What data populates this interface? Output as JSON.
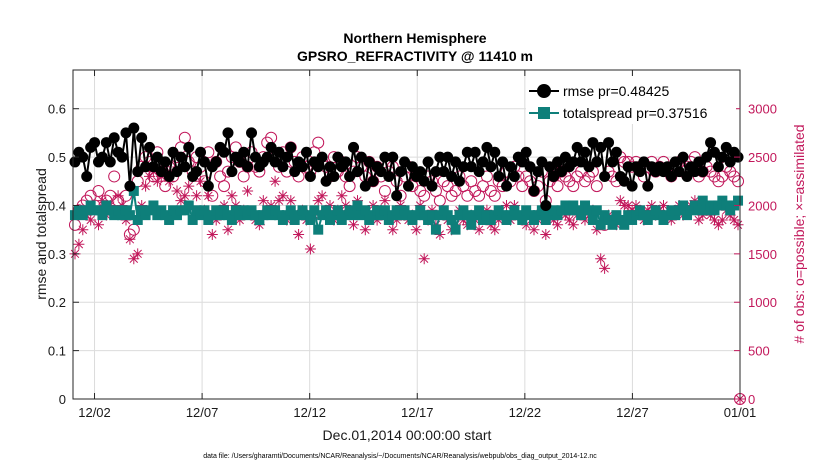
{
  "chart_data": {
    "type": "line",
    "title": "Northern Hemisphere",
    "subtitle": "GPSRO_REFRACTIVITY @ 11410 m",
    "xlabel": "Dec.01,2014 00:00:00 start",
    "ylabel": "rmse and totalspread",
    "ylabel_right": "# of obs: o=possible; ×=assimilated",
    "footnote": "data file: /Users/gharamti/Documents/NCAR/Reanalysis/~/Documents/NCAR/Reanalysis/webpub/obs_diag_output_2014-12.nc",
    "xlim": [
      0,
      31
    ],
    "ylim": [
      0,
      0.68
    ],
    "ylim_right": [
      0,
      3400
    ],
    "x_ticks": [
      {
        "value": 1,
        "label": "12/02"
      },
      {
        "value": 6,
        "label": "12/07"
      },
      {
        "value": 11,
        "label": "12/12"
      },
      {
        "value": 16,
        "label": "12/17"
      },
      {
        "value": 21,
        "label": "12/22"
      },
      {
        "value": 26,
        "label": "12/27"
      },
      {
        "value": 31,
        "label": "01/01"
      }
    ],
    "y_ticks": [
      {
        "value": 0,
        "label": "0"
      },
      {
        "value": 0.1,
        "label": "0.1"
      },
      {
        "value": 0.2,
        "label": "0.2"
      },
      {
        "value": 0.3,
        "label": "0.3"
      },
      {
        "value": 0.4,
        "label": "0.4"
      },
      {
        "value": 0.5,
        "label": "0.5"
      },
      {
        "value": 0.6,
        "label": "0.6"
      }
    ],
    "y_ticks_right": [
      {
        "value": 0,
        "label": "0"
      },
      {
        "value": 500,
        "label": "500"
      },
      {
        "value": 1000,
        "label": "1000"
      },
      {
        "value": 1500,
        "label": "1500"
      },
      {
        "value": 2000,
        "label": "2000"
      },
      {
        "value": 2500,
        "label": "2500"
      },
      {
        "value": 3000,
        "label": "3000"
      }
    ],
    "legend_position": "top-right",
    "series": [
      {
        "name": "rmse",
        "label": "rmse pr=0.48425",
        "color": "#000000",
        "marker": "filled-circle",
        "axis": "left",
        "values": [
          0.49,
          0.51,
          0.5,
          0.46,
          0.52,
          0.53,
          0.49,
          0.5,
          0.53,
          0.49,
          0.54,
          0.51,
          0.5,
          0.55,
          0.44,
          0.56,
          0.47,
          0.54,
          0.48,
          0.52,
          0.48,
          0.5,
          0.47,
          0.49,
          0.46,
          0.51,
          0.47,
          0.5,
          0.48,
          0.52,
          0.46,
          0.47,
          0.51,
          0.49,
          0.44,
          0.48,
          0.49,
          0.52,
          0.51,
          0.55,
          0.47,
          0.5,
          0.49,
          0.51,
          0.48,
          0.55,
          0.5,
          0.48,
          0.49,
          0.5,
          0.52,
          0.49,
          0.51,
          0.48,
          0.5,
          0.52,
          0.47,
          0.49,
          0.48,
          0.51,
          0.46,
          0.49,
          0.48,
          0.5,
          0.45,
          0.48,
          0.46,
          0.5,
          0.48,
          0.49,
          0.46,
          0.52,
          0.47,
          0.5,
          0.44,
          0.49,
          0.45,
          0.48,
          0.47,
          0.5,
          0.46,
          0.5,
          0.42,
          0.47,
          0.49,
          0.44,
          0.48,
          0.46,
          0.47,
          0.45,
          0.49,
          0.44,
          0.47,
          0.5,
          0.47,
          0.5,
          0.46,
          0.49,
          0.45,
          0.48,
          0.51,
          0.48,
          0.51,
          0.47,
          0.49,
          0.52,
          0.48,
          0.51,
          0.46,
          0.49,
          0.44,
          0.48,
          0.46,
          0.5,
          0.49,
          0.51,
          0.48,
          0.43,
          0.47,
          0.49,
          0.4,
          0.48,
          0.46,
          0.49,
          0.47,
          0.5,
          0.48,
          0.49,
          0.52,
          0.49,
          0.51,
          0.48,
          0.53,
          0.49,
          0.52,
          0.46,
          0.53,
          0.49,
          0.51,
          0.46,
          0.45,
          0.48,
          0.44,
          0.48,
          0.47,
          0.49,
          0.44,
          0.48,
          0.47,
          0.48,
          0.47,
          0.48,
          0.46,
          0.49,
          0.47,
          0.5,
          0.46,
          0.48,
          0.47,
          0.49,
          0.47,
          0.5,
          0.53,
          0.51,
          0.48,
          0.5,
          0.52,
          0.49,
          0.51,
          0.5
        ]
      },
      {
        "name": "totalspread",
        "label": "totalspread pr=0.37516",
        "color": "#0e7f7a",
        "marker": "filled-square",
        "axis": "left",
        "values": [
          0.38,
          0.39,
          0.38,
          0.39,
          0.4,
          0.39,
          0.39,
          0.38,
          0.4,
          0.39,
          0.38,
          0.39,
          0.38,
          0.39,
          0.38,
          0.43,
          0.37,
          0.39,
          0.38,
          0.39,
          0.4,
          0.38,
          0.39,
          0.38,
          0.37,
          0.39,
          0.38,
          0.39,
          0.39,
          0.4,
          0.37,
          0.39,
          0.38,
          0.39,
          0.37,
          0.38,
          0.39,
          0.38,
          0.39,
          0.38,
          0.37,
          0.39,
          0.38,
          0.39,
          0.38,
          0.39,
          0.38,
          0.37,
          0.38,
          0.39,
          0.38,
          0.39,
          0.38,
          0.37,
          0.38,
          0.39,
          0.37,
          0.38,
          0.39,
          0.38,
          0.37,
          0.39,
          0.35,
          0.38,
          0.39,
          0.37,
          0.38,
          0.39,
          0.37,
          0.38,
          0.39,
          0.38,
          0.4,
          0.38,
          0.39,
          0.37,
          0.38,
          0.39,
          0.38,
          0.39,
          0.37,
          0.38,
          0.39,
          0.38,
          0.39,
          0.38,
          0.37,
          0.38,
          0.39,
          0.38,
          0.37,
          0.38,
          0.35,
          0.38,
          0.39,
          0.38,
          0.37,
          0.35,
          0.38,
          0.39,
          0.38,
          0.36,
          0.38,
          0.39,
          0.37,
          0.38,
          0.37,
          0.38,
          0.39,
          0.38,
          0.37,
          0.38,
          0.39,
          0.38,
          0.37,
          0.39,
          0.38,
          0.37,
          0.38,
          0.39,
          0.37,
          0.38,
          0.39,
          0.38,
          0.39,
          0.4,
          0.39,
          0.4,
          0.39,
          0.38,
          0.4,
          0.39,
          0.37,
          0.39,
          0.36,
          0.38,
          0.37,
          0.36,
          0.38,
          0.37,
          0.36,
          0.38,
          0.37,
          0.38,
          0.39,
          0.38,
          0.37,
          0.38,
          0.39,
          0.38,
          0.37,
          0.38,
          0.39,
          0.38,
          0.39,
          0.4,
          0.38,
          0.39,
          0.4,
          0.39,
          0.41,
          0.39,
          0.4,
          0.39,
          0.4,
          0.41,
          0.4,
          0.39,
          0.4,
          0.41
        ]
      },
      {
        "name": "possible",
        "label": "possible",
        "color": "#c2185b",
        "marker": "open-circle",
        "axis": "right",
        "values": [
          1800,
          1950,
          2000,
          2050,
          2100,
          2000,
          2150,
          1950,
          2050,
          2100,
          2300,
          2050,
          1950,
          2100,
          1700,
          1750,
          2250,
          2400,
          2500,
          2450,
          2300,
          2550,
          2350,
          2200,
          2400,
          2300,
          2500,
          2600,
          2700,
          2450,
          2350,
          2500,
          2400,
          2250,
          2550,
          2100,
          2450,
          2300,
          2200,
          2350,
          2500,
          2600,
          2450,
          2300,
          2400,
          2550,
          2400,
          2350,
          2500,
          2650,
          2700,
          2500,
          2400,
          2550,
          2350,
          2600,
          2450,
          2300,
          2500,
          2400,
          2350,
          2550,
          2650,
          2450,
          2400,
          2300,
          2500,
          2350,
          2450,
          2300,
          2200,
          2350,
          2500,
          2400,
          2300,
          2450,
          2250,
          2400,
          2300,
          2150,
          2350,
          2400,
          2250,
          2100,
          2300,
          2400,
          2200,
          2300,
          2150,
          2100,
          2300,
          2250,
          2150,
          2050,
          2250,
          2200,
          2100,
          2150,
          2300,
          2200,
          2100,
          2250,
          2150,
          2100,
          2200,
          2300,
          2150,
          2100,
          2250,
          2200,
          2350,
          2250,
          2400,
          2300,
          2200,
          2300,
          2250,
          2150,
          2200,
          2350,
          2050,
          2250,
          2300,
          2200,
          2350,
          2300,
          2250,
          2200,
          2300,
          2350,
          2250,
          2300,
          2350,
          2200,
          1850,
          1800,
          2350,
          2300,
          2250,
          2500,
          2450,
          2450,
          2400,
          2450,
          2400,
          2300,
          2400,
          2450,
          2350,
          2400,
          2450,
          2350,
          2300,
          2400,
          2450,
          2350,
          2400,
          2450,
          2500,
          2300,
          2350,
          2400,
          2350,
          2300,
          2250,
          2300,
          2400,
          2350,
          2300,
          2250
        ]
      },
      {
        "name": "assimilated",
        "label": "assimilated",
        "color": "#c2185b",
        "marker": "asterisk",
        "axis": "right",
        "values": [
          1500,
          1600,
          1750,
          1900,
          1850,
          1950,
          1800,
          2050,
          1900,
          2000,
          1950,
          2100,
          2000,
          1850,
          1650,
          1450,
          1500,
          2000,
          2200,
          2300,
          2350,
          2250,
          2300,
          2400,
          2250,
          2350,
          2150,
          2050,
          2100,
          2200,
          2300,
          2100,
          2250,
          1950,
          2100,
          1700,
          1850,
          1950,
          2000,
          1750,
          2100,
          2000,
          1850,
          1950,
          2150,
          1900,
          1850,
          1800,
          2050,
          1950,
          2000,
          2250,
          2050,
          2100,
          1850,
          2050,
          1900,
          1700,
          1950,
          1850,
          1550,
          1900,
          2050,
          2100,
          1950,
          2000,
          1850,
          1950,
          2100,
          2000,
          1950,
          1800,
          2050,
          1950,
          1750,
          1900,
          2000,
          1850,
          1950,
          2050,
          1900,
          1750,
          1850,
          2000,
          1900,
          1850,
          1900,
          1750,
          2000,
          1450,
          1850,
          1950,
          1800,
          1700,
          1900,
          1850,
          1750,
          1800,
          1950,
          1850,
          1800,
          1900,
          1850,
          1750,
          1900,
          1950,
          1800,
          1750,
          1850,
          1900,
          2000,
          1850,
          2000,
          1900,
          1850,
          1800,
          1900,
          1750,
          1850,
          1950,
          1700,
          1900,
          1850,
          1800,
          1950,
          1900,
          1850,
          1800,
          1900,
          1950,
          1850,
          1900,
          1950,
          1750,
          1450,
          1350,
          1900,
          1850,
          1800,
          2050,
          2000,
          2000,
          1950,
          2000,
          1950,
          1850,
          1950,
          2000,
          1900,
          1950,
          2000,
          1900,
          1850,
          1950,
          2000,
          1900,
          1950,
          2000,
          2050,
          1850,
          1900,
          1950,
          1900,
          1850,
          1800,
          1850,
          1950,
          1900,
          1850,
          1800
        ]
      }
    ]
  }
}
